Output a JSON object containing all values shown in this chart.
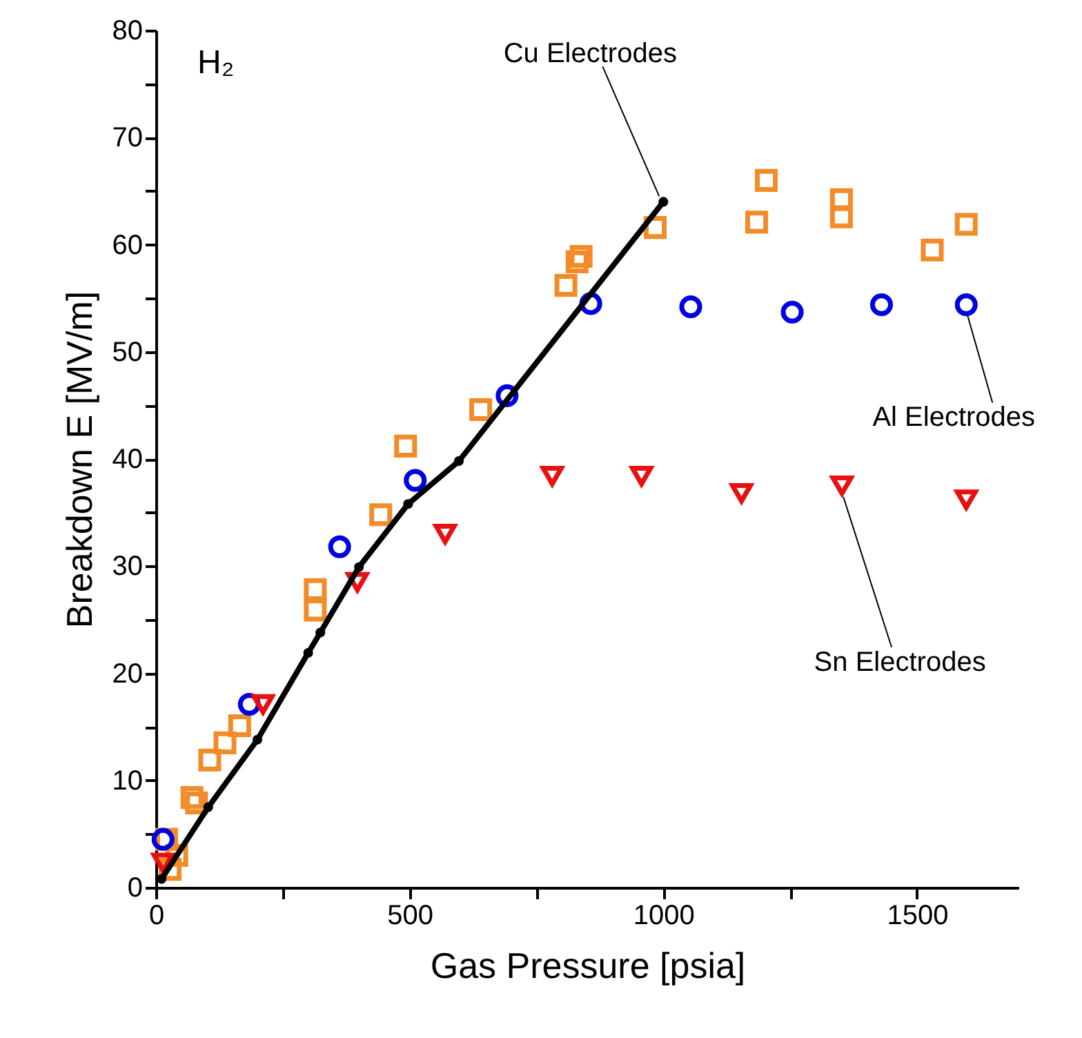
{
  "chart_data": {
    "type": "scatter",
    "xlabel": "Gas Pressure [psia]",
    "ylabel": "Breakdown E [MV/m]",
    "xlim": [
      0,
      1700
    ],
    "ylim": [
      0,
      80
    ],
    "xticks": [
      0,
      {
        "value": 250,
        "label": null
      },
      500,
      {
        "value": 750,
        "label": null
      },
      1000,
      {
        "value": 1250,
        "label": null
      },
      1500
    ],
    "yticks": [
      0,
      {
        "value": 5,
        "label": null
      },
      10,
      {
        "value": 15,
        "label": null
      },
      20,
      {
        "value": 25,
        "label": null
      },
      30,
      {
        "value": 35,
        "label": null
      },
      40,
      {
        "value": 45,
        "label": null
      },
      50,
      {
        "value": 55,
        "label": null
      },
      60,
      {
        "value": 65,
        "label": null
      },
      70,
      {
        "value": 75,
        "label": null
      },
      80
    ],
    "grid": false,
    "series": [
      {
        "marker": "square",
        "color": "#f28c28",
        "x": [
          21,
          41,
          28,
          71,
          80,
          106,
          136,
          165,
          314,
          314,
          443,
          492,
          640,
          808,
          830,
          838,
          984,
          1184,
          1203,
          1351,
          1351,
          1530,
          1597
        ],
        "values": [
          4.5,
          3,
          1.7,
          8.4,
          7.9,
          11.9,
          13.5,
          15.1,
          27.8,
          25.9,
          34.8,
          41.2,
          44.6,
          56.2,
          58.4,
          58.9,
          61.6,
          62.1,
          66.0,
          64.2,
          62.6,
          59.5,
          61.9
        ]
      },
      {
        "marker": "circle",
        "color": "#0000e0",
        "x": [
          14,
          184,
          362,
          511,
          692,
          857,
          1054,
          1254,
          1430,
          1597
        ],
        "values": [
          4.5,
          17.1,
          31.8,
          38.0,
          45.9,
          54.5,
          54.2,
          53.7,
          54.4,
          54.4
        ]
      },
      {
        "marker": "triangle",
        "color": "#e81010",
        "x": [
          14,
          211,
          397,
          570,
          781,
          957,
          1154,
          1352,
          1597
        ],
        "values": [
          2.3,
          17.1,
          28.5,
          33.0,
          38.4,
          38.4,
          36.8,
          37.5,
          36.2
        ]
      },
      {
        "type": "line",
        "marker": "circle",
        "line_style": "solid",
        "color": "#000000",
        "x": [
          11,
          103,
          200,
          300,
          324,
          400,
          497,
          597,
          1000
        ],
        "values": [
          0.8,
          7.5,
          13.8,
          21.9,
          23.8,
          29.9,
          35.8,
          39.8,
          64
        ]
      }
    ],
    "annotations": [
      "H₂",
      {
        "text": "Cu Electrodes",
        "x": 1000,
        "y": 64
      },
      {
        "text": "Al Electrodes",
        "x": 1597,
        "y": 54.4
      },
      {
        "text": "Sn Electrodes",
        "x": 1352,
        "y": 37.5
      }
    ]
  }
}
